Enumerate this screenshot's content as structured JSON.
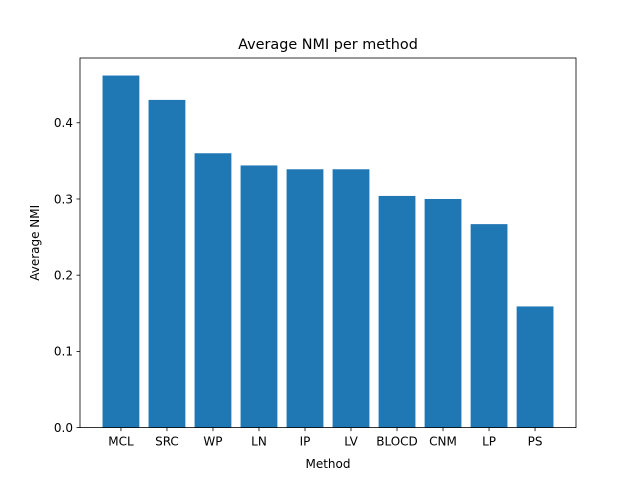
{
  "chart_data": {
    "type": "bar",
    "title": "Average NMI per method",
    "xlabel": "Method",
    "ylabel": "Average NMI",
    "categories": [
      "MCL",
      "SRC",
      "WP",
      "LN",
      "IP",
      "LV",
      "BLOCD",
      "CNM",
      "LP",
      "PS"
    ],
    "values": [
      0.462,
      0.43,
      0.36,
      0.344,
      0.339,
      0.339,
      0.304,
      0.3,
      0.267,
      0.159
    ],
    "ylim": [
      0,
      0.485
    ],
    "yticks": [
      "0.0",
      "0.1",
      "0.2",
      "0.3",
      "0.4"
    ],
    "grid": false,
    "bar_color": "#1f77b4"
  }
}
